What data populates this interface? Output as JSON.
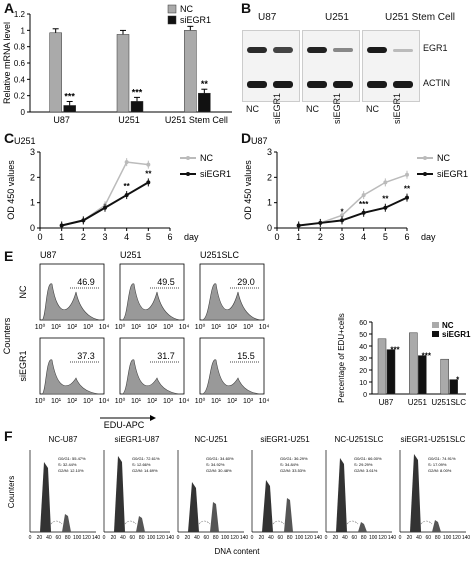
{
  "panels": {
    "A": {
      "label": "A",
      "chart_data": {
        "type": "bar",
        "ylabel": "Relative mRNA level",
        "ylim": [
          0,
          1.2
        ],
        "yticks": [
          "0",
          "0.2",
          "0.4",
          "0.6",
          "0.8",
          "1",
          "1.2"
        ],
        "categories": [
          "U87",
          "U251",
          "U251 Stem Cell"
        ],
        "series": [
          {
            "name": "NC",
            "values": [
              0.97,
              0.95,
              1.0
            ],
            "color": "#aaaaaa"
          },
          {
            "name": "siEGR1",
            "values": [
              0.08,
              0.13,
              0.23
            ],
            "color": "#111111"
          }
        ],
        "annotations": [
          "***",
          "***",
          "**"
        ],
        "legend": "top-right"
      }
    },
    "B": {
      "label": "B",
      "groups": [
        "U87",
        "U251",
        "U251 Stem Cell"
      ],
      "bands": [
        "EGR1",
        "ACTIN"
      ],
      "lanes": [
        "NC",
        "siEGR1"
      ]
    },
    "C": {
      "label": "C",
      "chart_data": {
        "type": "line",
        "title": "U251",
        "ylabel": "OD 450 values",
        "xlabel": "day",
        "xlim": [
          0,
          6
        ],
        "ylim": [
          0,
          3
        ],
        "xticks": [
          "0",
          "1",
          "2",
          "3",
          "4",
          "5",
          "6"
        ],
        "yticks": [
          "0",
          "1",
          "2",
          "3"
        ],
        "series": [
          {
            "name": "NC",
            "x": [
              1,
              2,
              3,
              4,
              5
            ],
            "values": [
              0.1,
              0.3,
              0.9,
              2.6,
              2.5
            ],
            "color": "#bbbbbb"
          },
          {
            "name": "siEGR1",
            "x": [
              1,
              2,
              3,
              4,
              5
            ],
            "values": [
              0.1,
              0.3,
              0.8,
              1.3,
              1.8
            ],
            "color": "#111111"
          }
        ],
        "annotations": [
          {
            "x": 4,
            "text": "**"
          },
          {
            "x": 5,
            "text": "**"
          }
        ],
        "legend": "top-right"
      }
    },
    "D": {
      "label": "D",
      "chart_data": {
        "type": "line",
        "title": "U87",
        "ylabel": "OD 450 values",
        "xlabel": "day",
        "xlim": [
          0,
          6
        ],
        "ylim": [
          0,
          3
        ],
        "xticks": [
          "0",
          "1",
          "2",
          "3",
          "4",
          "5",
          "6"
        ],
        "yticks": [
          "0",
          "1",
          "2",
          "3"
        ],
        "series": [
          {
            "name": "NC",
            "x": [
              1,
              2,
              3,
              4,
              5,
              6
            ],
            "values": [
              0.1,
              0.2,
              0.5,
              1.3,
              1.8,
              2.1
            ],
            "color": "#bbbbbb"
          },
          {
            "name": "siEGR1",
            "x": [
              1,
              2,
              3,
              4,
              5,
              6
            ],
            "values": [
              0.1,
              0.2,
              0.3,
              0.6,
              0.8,
              1.2
            ],
            "color": "#111111"
          }
        ],
        "annotations": [
          {
            "x": 3,
            "text": "*"
          },
          {
            "x": 4,
            "text": "***"
          },
          {
            "x": 5,
            "text": "**"
          },
          {
            "x": 6,
            "text": "**"
          }
        ],
        "legend": "top-right"
      }
    },
    "E": {
      "label": "E",
      "columns": [
        "U87",
        "U251",
        "U251SLC"
      ],
      "rows": [
        "NC",
        "siEGR1"
      ],
      "percentages": [
        [
          "46.9",
          "49.5",
          "29.0"
        ],
        [
          "37.3",
          "31.7",
          "15.5"
        ]
      ],
      "ylabel": "Counters",
      "xlabel": "EDU-APC",
      "ticks": [
        "10⁰",
        "10¹",
        "10²",
        "10³",
        "10⁴"
      ],
      "bar_chart": {
        "type": "bar",
        "ylabel": "Percentage of EDU+cells",
        "categories": [
          "U87",
          "U251",
          "U251SLC"
        ],
        "ylim": [
          0,
          60
        ],
        "yticks": [
          "0",
          "10",
          "20",
          "30",
          "40",
          "50",
          "60"
        ],
        "series": [
          {
            "name": "NC",
            "values": [
              46,
              51,
              29
            ],
            "color": "#aaaaaa"
          },
          {
            "name": "siEGR1",
            "values": [
              37,
              32,
              12
            ],
            "color": "#111111"
          }
        ],
        "annotations": [
          "***",
          "***",
          "*"
        ],
        "legend": "top-right"
      }
    },
    "F": {
      "label": "F",
      "titles": [
        "NC-U87",
        "siEGR1-U87",
        "NC-U251",
        "siEGR1-U251",
        "NC-U251SLC",
        "siEGR1-U251SLC"
      ],
      "ylabel": "Counters",
      "xlabel": "DNA content",
      "ticks": [
        "0",
        "20",
        "40",
        "60",
        "80",
        "100",
        "120",
        "140"
      ],
      "stats": [
        [
          "G0/G1: 55.47%",
          "S: 32.44%",
          "G2/M: 12.10%"
        ],
        [
          "G0/G1: 72.61%",
          "S: 12.66%",
          "G2/M: 14.69%"
        ],
        [
          "G0/G1: 34.60%",
          "S: 34.92%",
          "G2/M: 30.48%"
        ],
        [
          "G0/G1: 36.29%",
          "S: 34.84%",
          "G2/M: 33.53%"
        ],
        [
          "G0/G1: 66.00%",
          "S: 29.29%",
          "G2/M: 3.61%"
        ],
        [
          "G0/G1: 74.91%",
          "S: 17.09%",
          "G2/M: 8.00%"
        ]
      ]
    }
  }
}
